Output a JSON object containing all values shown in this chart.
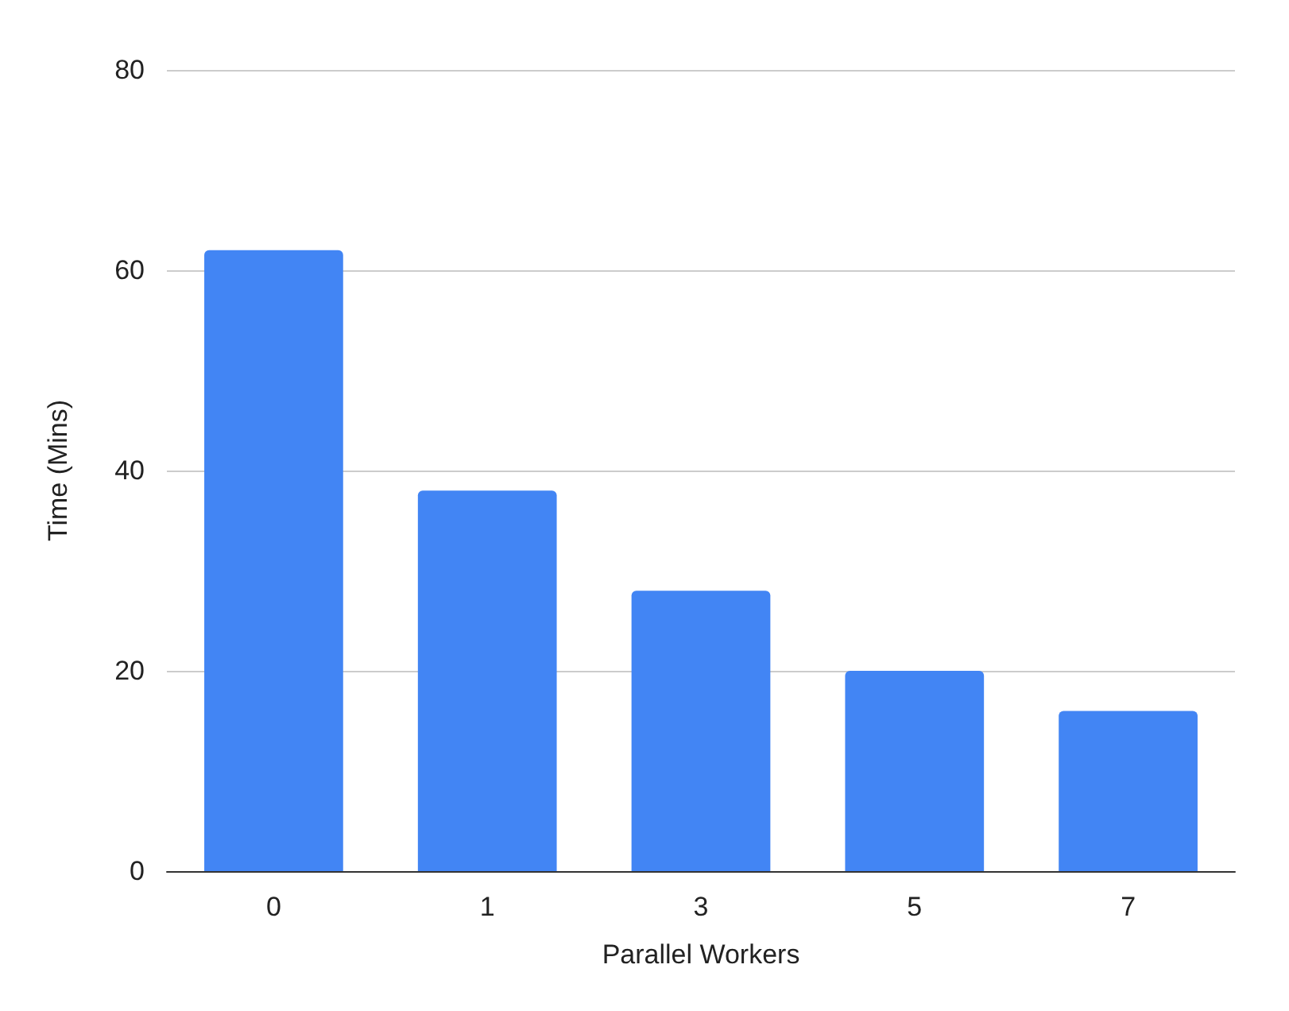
{
  "chart_data": {
    "type": "bar",
    "xlabel": "Parallel Workers",
    "ylabel": "Time (Mins)",
    "categories": [
      "0",
      "1",
      "3",
      "5",
      "7"
    ],
    "values": [
      62,
      38,
      28,
      20,
      16
    ],
    "color": "#4285f4",
    "ylim": [
      0,
      80
    ],
    "yticks": [
      0,
      20,
      40,
      60,
      80
    ],
    "grid": "y"
  }
}
